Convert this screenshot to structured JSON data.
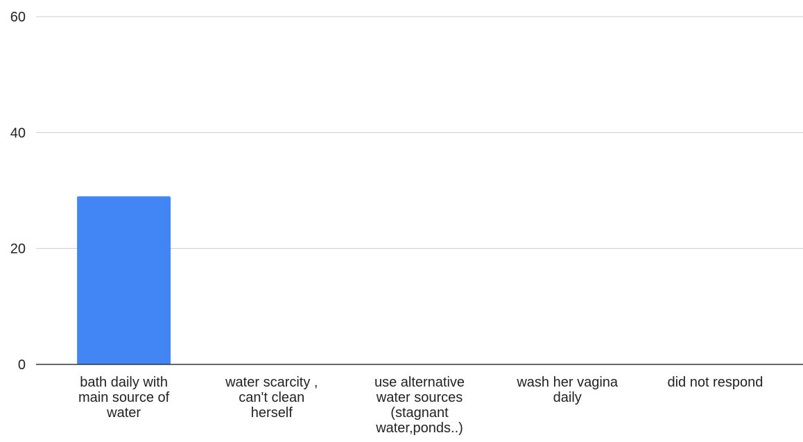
{
  "chart_data": {
    "type": "bar",
    "categories": [
      "bath daily with main source of water",
      "water scarcity , can't clean herself",
      "use alternative water sources (stagnant water,ponds..)",
      "wash her vagina daily",
      "did not respond"
    ],
    "category_label_lines": [
      [
        "bath daily with",
        "main source of",
        "water"
      ],
      [
        "water scarcity ,",
        "can't clean",
        "herself"
      ],
      [
        "use alternative",
        "water sources",
        "(stagnant",
        "water,ponds..)"
      ],
      [
        "wash her vagina",
        "daily"
      ],
      [
        "did not respond"
      ]
    ],
    "values": [
      29,
      0,
      0,
      0,
      0
    ],
    "ylim": [
      0,
      60
    ],
    "yticks": [
      0,
      20,
      40,
      60
    ],
    "grid": true,
    "title": "",
    "xlabel": "",
    "ylabel": "",
    "bar_color": "#4285f4",
    "grid_color": "#cccccc",
    "axis_color": "#333333"
  }
}
